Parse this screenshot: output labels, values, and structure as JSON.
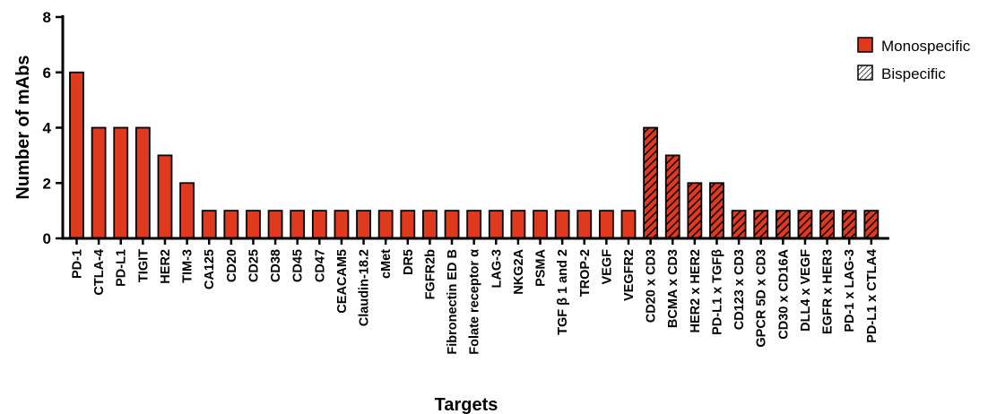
{
  "chart_data": {
    "type": "bar",
    "title": "",
    "xlabel": "Targets",
    "ylabel": "Number of mAbs",
    "ylim": [
      0,
      8
    ],
    "yticks": [
      0,
      2,
      4,
      6,
      8
    ],
    "grid": false,
    "legend_position": "top-right",
    "colors": {
      "bar_fill": "#e03a1e",
      "bar_stroke": "#000000",
      "hatch": "#000000"
    },
    "series": [
      {
        "name": "Monospecific",
        "pattern": "solid"
      },
      {
        "name": "Bispecific",
        "pattern": "hatched"
      }
    ],
    "categories": [
      "PD-1",
      "CTLA-4",
      "PD-L1",
      "TIGIT",
      "HER2",
      "TIM-3",
      "CA125",
      "CD20",
      "CD25",
      "CD38",
      "CD45",
      "CD47",
      "CEACAM5",
      "Claudin-18.2",
      "cMet",
      "DR5",
      "FGFR2b",
      "Fibronectin ED B",
      "Folate receptor α",
      "LAG-3",
      "NKG2A",
      "PSMA",
      "TGF β 1 and 2",
      "TROP-2",
      "VEGF",
      "VEGFR2",
      "CD20 x CD3",
      "BCMA x CD3",
      "HER2 x HER2",
      "PD-L1 x TGFβ",
      "CD123 x CD3",
      "GPCR 5D x CD3",
      "CD30 x CD16A",
      "DLL4 x VEGF",
      "EGFR x HER3",
      "PD-1 x LAG-3",
      "PD-L1 x CTLA4"
    ],
    "values": [
      6,
      4,
      4,
      4,
      3,
      2,
      1,
      1,
      1,
      1,
      1,
      1,
      1,
      1,
      1,
      1,
      1,
      1,
      1,
      1,
      1,
      1,
      1,
      1,
      1,
      1,
      4,
      3,
      2,
      2,
      1,
      1,
      1,
      1,
      1,
      1,
      1
    ],
    "bar_series": [
      0,
      0,
      0,
      0,
      0,
      0,
      0,
      0,
      0,
      0,
      0,
      0,
      0,
      0,
      0,
      0,
      0,
      0,
      0,
      0,
      0,
      0,
      0,
      0,
      0,
      0,
      1,
      1,
      1,
      1,
      1,
      1,
      1,
      1,
      1,
      1,
      1
    ]
  }
}
